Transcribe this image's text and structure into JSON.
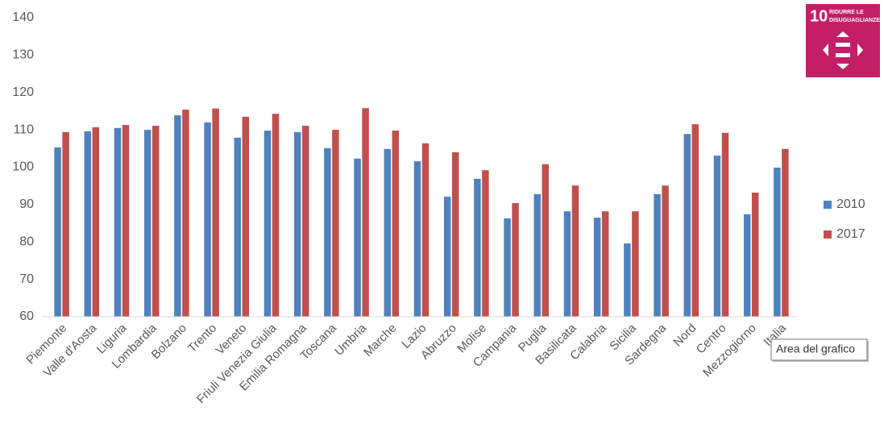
{
  "chart_data": {
    "type": "bar",
    "categories": [
      "Piemonte",
      "Valle d'Aosta",
      "Liguria",
      "Lombardia",
      "Bolzano",
      "Trento",
      "Veneto",
      "Friuli Venezia Giulia",
      "Emilia Romagna",
      "Toscana",
      "Umbria",
      "Marche",
      "Lazio",
      "Abruzzo",
      "Molise",
      "Campania",
      "Puglia",
      "Basilicata",
      "Calabria",
      "Sicilia",
      "Sardegna",
      "Nord",
      "Centro",
      "Mezzogiorno",
      "Italia"
    ],
    "series": [
      {
        "name": "2010",
        "color": "#4f81bd",
        "values": [
          105.3,
          109.6,
          110.5,
          110.0,
          113.9,
          112.0,
          107.9,
          109.8,
          109.4,
          105.1,
          102.3,
          104.9,
          101.6,
          92.1,
          96.9,
          86.3,
          92.8,
          88.2,
          86.5,
          79.6,
          92.8,
          108.9,
          103.1,
          87.4,
          99.9
        ]
      },
      {
        "name": "2017",
        "color": "#c0504d",
        "values": [
          109.4,
          110.7,
          111.3,
          111.1,
          115.4,
          115.7,
          113.5,
          114.3,
          111.1,
          110.0,
          115.8,
          109.8,
          106.4,
          104.0,
          99.2,
          90.4,
          100.8,
          95.1,
          88.2,
          88.2,
          95.1,
          111.5,
          109.2,
          93.2,
          104.9
        ]
      }
    ],
    "ylim": [
      60,
      140
    ],
    "yticks": [
      60,
      70,
      80,
      90,
      100,
      110,
      120,
      130,
      140
    ],
    "grid": false,
    "legend": "right"
  },
  "logo": {
    "number": "10",
    "line1": "RIDURRE LE",
    "line2": "DISUGUAGLIANZE"
  },
  "tooltip": "Area del grafico"
}
